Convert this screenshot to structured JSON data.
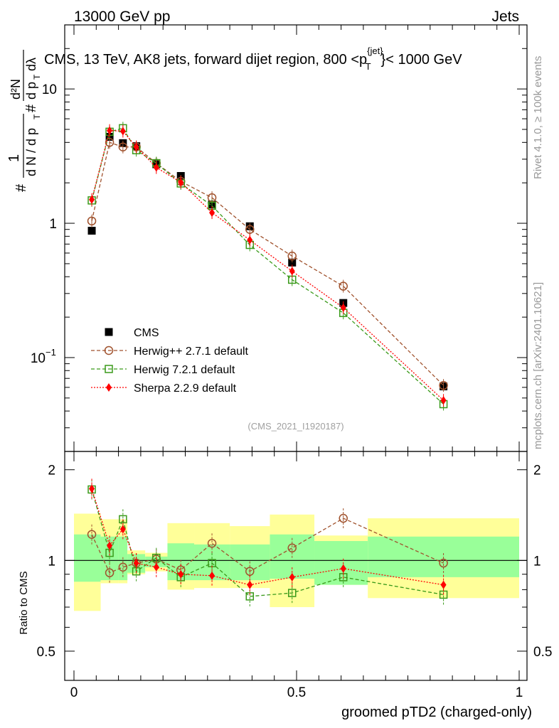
{
  "header": {
    "left": "13000 GeV pp",
    "right": "Jets",
    "title": "CMS, 13 TeV, AK8 jets, forward dijet region, 800 <p",
    "title_sup": "{jet}",
    "title_sub": "T",
    "title_end": "}< 1000 GeV"
  },
  "side": {
    "rivet": "Rivet 4.1.0, ≥ 100k events",
    "mcplots": "mcplots.cern.ch [arXiv:2401.10621]"
  },
  "watermark": "(CMS_2021_I1920187)",
  "ylabel_main": {
    "hash1": "#",
    "one": "1",
    "dN": "d N / d p",
    "dN_sub": "T",
    "hash2": "#",
    "num": "d²N",
    "den": "d p",
    "den_sub": "T",
    "dl": "dλ"
  },
  "ylabel_ratio": "Ratio to CMS",
  "xlabel": "groomed pTD2 (charged-only)",
  "legend": [
    {
      "label": "CMS",
      "color": "#000000",
      "marker": "square-filled"
    },
    {
      "label": "Herwig++ 2.7.1 default",
      "color": "#a0522d",
      "marker": "circle-open"
    },
    {
      "label": "Herwig 7.2.1 default",
      "color": "#3a9a1a",
      "marker": "square-open"
    },
    {
      "label": "Sherpa 2.2.9 default",
      "color": "#ff0000",
      "marker": "diamond-filled"
    }
  ],
  "chart_data": {
    "type": "scatter",
    "x": [
      0.04,
      0.08,
      0.11,
      0.14,
      0.185,
      0.24,
      0.31,
      0.395,
      0.49,
      0.605,
      0.83
    ],
    "series": [
      {
        "name": "CMS",
        "values": [
          0.88,
          4.4,
          3.95,
          3.75,
          2.75,
          2.25,
          1.38,
          0.95,
          0.51,
          0.255,
          0.061
        ]
      },
      {
        "name": "Herwig++ 2.7.1 default",
        "values": [
          1.04,
          4.0,
          3.7,
          3.7,
          2.8,
          2.05,
          1.55,
          0.9,
          0.57,
          0.34,
          0.062
        ]
      },
      {
        "name": "Herwig 7.2.1 default",
        "values": [
          1.48,
          4.8,
          5.1,
          3.5,
          2.8,
          1.98,
          1.35,
          0.69,
          0.38,
          0.215,
          0.045
        ]
      },
      {
        "name": "Sherpa 2.2.9 default",
        "values": [
          1.5,
          4.9,
          4.85,
          3.7,
          2.6,
          2.02,
          1.2,
          0.75,
          0.44,
          0.235,
          0.048
        ]
      }
    ],
    "ratio_series": [
      {
        "name": "Herwig++ 2.7.1 default",
        "values": [
          1.22,
          0.91,
          0.95,
          0.98,
          1.01,
          0.93,
          1.14,
          0.92,
          1.1,
          1.38,
          0.98
        ]
      },
      {
        "name": "Herwig 7.2.1 default",
        "values": [
          1.72,
          1.06,
          1.37,
          0.92,
          1.02,
          0.88,
          0.98,
          0.76,
          0.78,
          0.88,
          0.77
        ]
      },
      {
        "name": "Sherpa 2.2.9 default",
        "values": [
          1.73,
          1.12,
          1.27,
          0.98,
          0.95,
          0.9,
          0.89,
          0.83,
          0.88,
          0.94,
          0.83
        ]
      }
    ],
    "ratio_bands": {
      "edges": [
        0.0,
        0.06,
        0.1,
        0.12,
        0.16,
        0.21,
        0.27,
        0.35,
        0.44,
        0.54,
        0.66,
        1.0
      ],
      "stat_lo": [
        0.85,
        0.86,
        0.86,
        0.91,
        0.95,
        0.86,
        0.86,
        0.86,
        0.87,
        0.83,
        0.88
      ],
      "stat_hi": [
        1.22,
        1.2,
        1.2,
        1.05,
        1.03,
        1.14,
        1.13,
        1.13,
        1.22,
        1.16,
        1.2
      ],
      "tot_lo": [
        0.68,
        0.84,
        0.84,
        0.9,
        0.92,
        0.8,
        0.81,
        0.81,
        0.7,
        0.83,
        0.75
      ],
      "tot_hi": [
        1.43,
        1.37,
        1.37,
        1.08,
        1.06,
        1.33,
        1.33,
        1.3,
        1.42,
        1.21,
        1.38
      ]
    },
    "xlim": [
      0,
      1
    ],
    "ylim_main": [
      0.02,
      30
    ],
    "ylim_ratio": [
      0.4,
      2.3
    ],
    "xticks": [
      "0",
      "0.5",
      "1"
    ],
    "yticks_main": [
      "10−1",
      "1",
      "10"
    ],
    "yticks_ratio": [
      "0.5",
      "1",
      "2"
    ],
    "yscale_main": "log"
  }
}
